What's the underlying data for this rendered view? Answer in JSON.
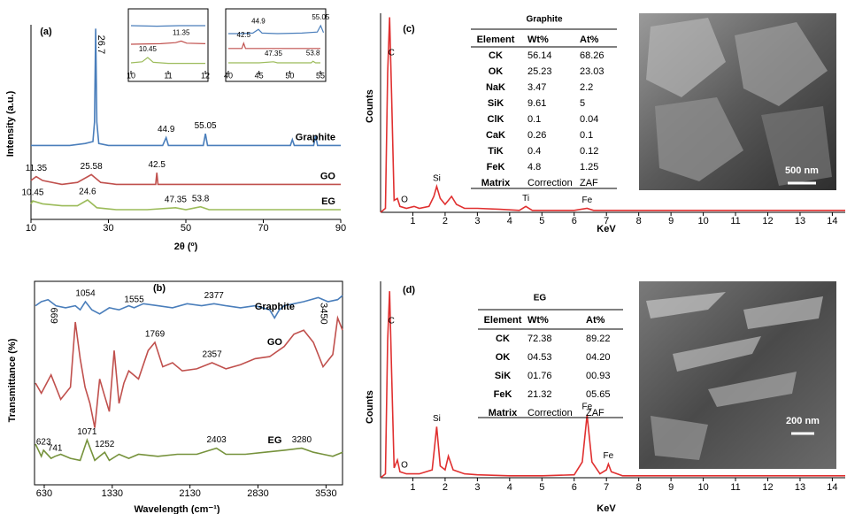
{
  "chart_data": [
    {
      "type": "line",
      "panel": "(a)",
      "x_label": "2θ (º)",
      "y_label": "Intensity (a.u.)",
      "xlim": [
        10,
        90
      ],
      "xticks": [
        10,
        30,
        50,
        70,
        90
      ],
      "ylim": [
        0,
        100
      ],
      "series": [
        {
          "name": "Graphite",
          "color": "#4a7ebb",
          "x": [
            10,
            15,
            20,
            24,
            26,
            26.4,
            26.7,
            27,
            27.5,
            30,
            35,
            40,
            44,
            44.9,
            45.5,
            50,
            54.5,
            55.05,
            55.6,
            60,
            70,
            77,
            77.5,
            78,
            83,
            83.5,
            84,
            88,
            90
          ],
          "values": [
            38,
            38,
            38,
            39,
            40,
            50,
            98,
            50,
            39,
            38,
            38,
            38,
            38,
            42,
            38,
            38,
            38,
            44,
            38,
            38,
            38,
            38,
            41,
            38,
            38,
            43,
            38,
            38,
            38
          ],
          "peaks": [
            26.7,
            44.9,
            55.05
          ]
        },
        {
          "name": "GO",
          "color": "#c0504d",
          "x": [
            10,
            11.35,
            13,
            18,
            22,
            25.58,
            28,
            32,
            38,
            42.2,
            42.5,
            42.8,
            47,
            55,
            65,
            75,
            85,
            90
          ],
          "values": [
            20,
            22,
            20,
            18,
            19,
            23,
            19,
            18,
            18,
            18,
            24,
            18,
            18,
            18,
            18,
            18,
            18,
            18
          ],
          "peaks": [
            11.35,
            25.58,
            42.5
          ]
        },
        {
          "name": "EG",
          "color": "#9bbb59",
          "x": [
            10,
            10.45,
            13,
            18,
            22,
            24.6,
            27,
            32,
            40,
            47.35,
            50,
            53.8,
            56,
            65,
            75,
            85,
            90
          ],
          "values": [
            8,
            9.5,
            8,
            7,
            7,
            10,
            6,
            5,
            5,
            6,
            5,
            6.5,
            5,
            5,
            5,
            5,
            5
          ],
          "peaks": [
            10.45,
            24.6,
            47.35,
            53.8
          ]
        }
      ]
    },
    {
      "type": "line",
      "xlim": [
        10,
        12
      ],
      "xticks": [
        10,
        11,
        12
      ],
      "ylim": [
        0,
        100
      ],
      "series": [
        {
          "color": "#4a7ebb",
          "x": [
            10,
            10.7,
            11.3,
            12
          ],
          "values": [
            85,
            84,
            85,
            85
          ]
        },
        {
          "color": "#c0504d",
          "x": [
            10,
            10.8,
            11.2,
            11.35,
            11.5,
            12
          ],
          "values": [
            50,
            51,
            53,
            56,
            52,
            51
          ],
          "peaks": [
            11.35
          ]
        },
        {
          "color": "#9bbb59",
          "x": [
            10,
            10.3,
            10.45,
            10.6,
            11,
            12
          ],
          "values": [
            15,
            17,
            25,
            16,
            14,
            14
          ],
          "peaks": [
            10.45
          ]
        }
      ]
    },
    {
      "type": "line",
      "xlim": [
        40,
        55
      ],
      "xticks": [
        40,
        45,
        50,
        55
      ],
      "ylim": [
        0,
        100
      ],
      "series": [
        {
          "color": "#4a7ebb",
          "x": [
            40,
            42,
            44,
            44.9,
            45.5,
            48,
            52,
            54.5,
            55.05,
            55.5
          ],
          "values": [
            70,
            70,
            71,
            78,
            71,
            70,
            71,
            73,
            85,
            72
          ],
          "peaks": [
            44.9,
            55.05
          ]
        },
        {
          "color": "#c0504d",
          "x": [
            40,
            42.2,
            42.5,
            42.8,
            48,
            55
          ],
          "values": [
            42,
            42,
            52,
            42,
            42,
            42
          ],
          "peaks": [
            42.5
          ]
        },
        {
          "color": "#9bbb59",
          "x": [
            40,
            45,
            47.35,
            48,
            53.5,
            53.8,
            54.2,
            55
          ],
          "values": [
            15,
            15,
            17,
            15,
            15,
            18,
            15,
            15
          ],
          "peaks": [
            47.35,
            53.8
          ]
        }
      ]
    },
    {
      "type": "line",
      "panel": "(b)",
      "x_label": "Wavelength (cm⁻¹)",
      "y_label": "Transmittance (%)",
      "xlim": [
        530,
        3700
      ],
      "xticks": [
        630,
        1330,
        2130,
        2830,
        3530
      ],
      "ylim": [
        0,
        100
      ],
      "series": [
        {
          "name": "Graphite",
          "color": "#4a7ebb",
          "x": [
            540,
            600,
            669,
            750,
            850,
            950,
            1000,
            1054,
            1120,
            1200,
            1300,
            1400,
            1500,
            1555,
            1650,
            1800,
            1950,
            2100,
            2250,
            2377,
            2500,
            2650,
            2800,
            2950,
            3000,
            3050,
            3100,
            3200,
            3300,
            3450,
            3550,
            3650,
            3700
          ],
          "values": [
            88,
            90,
            91,
            88,
            87,
            88,
            86,
            90,
            86,
            84,
            87,
            86,
            88,
            87,
            89,
            88,
            87,
            89,
            88,
            89,
            88,
            87,
            88,
            86,
            82,
            86,
            88,
            89,
            90,
            92,
            90,
            91,
            93
          ],
          "peaks": [
            669,
            1054,
            1555,
            2377,
            3450
          ]
        },
        {
          "name": "GO",
          "color": "#c0504d",
          "x": [
            540,
            600,
            700,
            800,
            900,
            950,
            1000,
            1050,
            1100,
            1150,
            1200,
            1250,
            1300,
            1350,
            1400,
            1450,
            1500,
            1600,
            1700,
            1769,
            1850,
            1950,
            2050,
            2200,
            2357,
            2500,
            2650,
            2800,
            2950,
            3100,
            3200,
            3300,
            3400,
            3500,
            3600,
            3650,
            3700
          ],
          "values": [
            50,
            45,
            54,
            42,
            48,
            80,
            62,
            48,
            40,
            28,
            52,
            44,
            36,
            66,
            40,
            50,
            56,
            52,
            66,
            70,
            58,
            60,
            56,
            57,
            60,
            57,
            59,
            62,
            63,
            68,
            74,
            76,
            70,
            58,
            64,
            82,
            76
          ],
          "peaks": [
            1769,
            2357
          ]
        },
        {
          "name": "EG",
          "color": "#76923c",
          "x": [
            540,
            600,
            623,
            700,
            741,
            800,
            900,
            1000,
            1071,
            1150,
            1200,
            1252,
            1300,
            1400,
            1500,
            1600,
            1800,
            2000,
            2200,
            2403,
            2500,
            2700,
            2900,
            3100,
            3280,
            3400,
            3500,
            3600,
            3700
          ],
          "values": [
            20,
            14,
            17,
            13,
            14,
            15,
            13,
            12,
            22,
            12,
            14,
            16,
            12,
            15,
            13,
            15,
            14,
            15,
            15,
            18,
            15,
            15,
            16,
            17,
            18,
            16,
            15,
            14,
            16
          ],
          "peaks": [
            623,
            741,
            1071,
            1252,
            2403,
            3280
          ]
        }
      ]
    },
    {
      "type": "line",
      "panel": "(c)",
      "x_label": "KeV",
      "y_label": "Counts",
      "xlim": [
        0,
        14.4
      ],
      "xticks": [
        1,
        2,
        3,
        4,
        5,
        6,
        7,
        8,
        9,
        10,
        11,
        12,
        13,
        14
      ],
      "ylim": [
        0,
        100
      ],
      "series": [
        {
          "color": "#e03030",
          "x": [
            0,
            0.15,
            0.22,
            0.28,
            0.34,
            0.42,
            0.52,
            0.6,
            0.8,
            1.04,
            1.2,
            1.5,
            1.65,
            1.74,
            1.85,
            2.0,
            2.1,
            2.2,
            2.35,
            2.6,
            3,
            3.7,
            4.3,
            4.5,
            4.7,
            5,
            6,
            6.4,
            6.6,
            7,
            8,
            9,
            10,
            11,
            12,
            13,
            14,
            14.4
          ],
          "values": [
            0,
            2,
            70,
            98,
            60,
            6,
            7,
            3,
            2,
            3,
            2,
            3,
            8,
            13,
            7,
            4,
            6,
            8,
            4,
            2,
            2,
            1.5,
            1,
            3,
            1,
            1,
            1,
            2,
            1,
            1,
            1,
            1,
            1,
            1,
            1,
            1,
            1,
            1
          ]
        }
      ],
      "annotations": [
        {
          "text": "C",
          "x": 0.28
        },
        {
          "text": "O",
          "x": 0.52
        },
        {
          "text": "Si",
          "x": 1.74
        },
        {
          "text": "Ti",
          "x": 4.5
        },
        {
          "text": "Fe",
          "x": 6.4
        }
      ],
      "table": {
        "title": "Graphite",
        "header": [
          "Element",
          "Wt%",
          "At%"
        ],
        "rows": [
          [
            "CK",
            "56.14",
            "68.26"
          ],
          [
            "OK",
            "25.23",
            "23.03"
          ],
          [
            "NaK",
            "3.47",
            "2.2"
          ],
          [
            "SiK",
            "9.61",
            "5"
          ],
          [
            "ClK",
            "0.1",
            "0.04"
          ],
          [
            "CaK",
            "0.26",
            "0.1"
          ],
          [
            "TiK",
            "0.4",
            "0.12"
          ],
          [
            "FeK",
            "4.8",
            "1.25"
          ],
          [
            "Matrix",
            "Correction",
            "ZAF"
          ]
        ]
      },
      "image_scale": "500 nm"
    },
    {
      "type": "line",
      "panel": "(d)",
      "x_label": "KeV",
      "y_label": "Counts",
      "xlim": [
        0,
        14.4
      ],
      "xticks": [
        1,
        2,
        3,
        4,
        5,
        6,
        7,
        8,
        9,
        10,
        11,
        12,
        13,
        14
      ],
      "ylim": [
        0,
        100
      ],
      "series": [
        {
          "color": "#e03030",
          "x": [
            0,
            0.15,
            0.22,
            0.28,
            0.34,
            0.42,
            0.52,
            0.6,
            0.8,
            1.2,
            1.6,
            1.74,
            1.85,
            2.0,
            2.1,
            2.25,
            2.6,
            3,
            4,
            5,
            6,
            6.25,
            6.4,
            6.55,
            6.8,
            7.0,
            7.06,
            7.15,
            7.5,
            8,
            9,
            10,
            11,
            12,
            13,
            14,
            14.4
          ],
          "values": [
            0,
            2,
            70,
            95,
            55,
            5,
            9,
            3,
            2,
            2,
            4,
            26,
            6,
            4,
            11,
            4,
            2,
            1.5,
            1,
            1,
            1.5,
            8,
            32,
            8,
            2,
            4,
            7,
            3,
            1,
            1,
            1,
            1,
            1,
            1,
            1,
            1,
            1
          ]
        }
      ],
      "annotations": [
        {
          "text": "C",
          "x": 0.28
        },
        {
          "text": "O",
          "x": 0.52
        },
        {
          "text": "Si",
          "x": 1.74
        },
        {
          "text": "Fe",
          "x": 6.4
        },
        {
          "text": "Fe",
          "x": 7.06
        }
      ],
      "table": {
        "title": "EG",
        "header": [
          "Element",
          "Wt%",
          "At%"
        ],
        "rows": [
          [
            "CK",
            "72.38",
            "89.22"
          ],
          [
            "OK",
            "04.53",
            "04.20"
          ],
          [
            "SiK",
            "01.76",
            "00.93"
          ],
          [
            "FeK",
            "21.32",
            "05.65"
          ],
          [
            "Matrix",
            "Correction",
            "ZAF"
          ]
        ]
      },
      "image_scale": "200 nm"
    }
  ]
}
